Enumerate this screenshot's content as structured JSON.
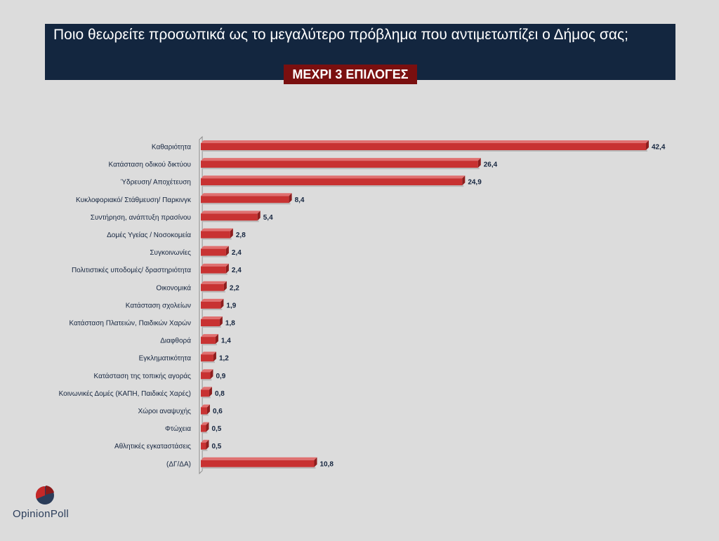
{
  "header": {
    "title": "Ποιο θεωρείτε προσωπικά ως το μεγαλύτερο πρόβλημα που αντιμετωπίζει ο Δήμος σας;",
    "subtitle": "ΜΕΧΡΙ 3 ΕΠΙΛΟΓΕΣ",
    "title_bg": "#13263f",
    "subtitle_bg": "#7a0f0f"
  },
  "logo": {
    "text_a": "Opinion",
    "text_b": "Poll",
    "icon": "pie-logo-icon"
  },
  "chart_data": {
    "type": "bar",
    "orientation": "horizontal",
    "bar_color": "#c83232",
    "categories": [
      "Καθαριότητα",
      "Κατάσταση οδικού δικτύου",
      "Ύδρευση/ Αποχέτευση",
      "Κυκλοφοριακό/ Στάθμευση/ Παρκινγκ",
      "Συντήρηση, ανάπτυξη πρασίνου",
      "Δομές Υγείας / Νοσοκομεία",
      "Συγκοινωνίες",
      "Πολιτιστικές υποδομές/ δραστηριότητα",
      "Οικονομικά",
      "Κατάσταση σχολείων",
      "Κατάσταση Πλατειών, Παιδικών Χαρών",
      "Διαφθορά",
      "Εγκληματικότητα",
      "Κατάσταση της τοπικής αγοράς",
      "Κοινωνικές Δομές (ΚΑΠΗ, Παιδικές Χαρές)",
      "Χώροι αναψυχής",
      "Φτώχεια",
      "Αθλητικές εγκαταστάσεις",
      "(ΔΓ/ΔΑ)"
    ],
    "values": [
      42.4,
      26.4,
      24.9,
      8.4,
      5.4,
      2.8,
      2.4,
      2.4,
      2.2,
      1.9,
      1.8,
      1.4,
      1.2,
      0.9,
      0.8,
      0.6,
      0.5,
      0.5,
      10.8
    ],
    "value_labels": [
      "42,4",
      "26,4",
      "24,9",
      "8,4",
      "5,4",
      "2,8",
      "2,4",
      "2,4",
      "2,2",
      "1,9",
      "1,8",
      "1,4",
      "1,2",
      "0,9",
      "0,8",
      "0,6",
      "0,5",
      "0,5",
      "10,8"
    ],
    "xlim": [
      0,
      42.4
    ],
    "grid": false,
    "legend": "none"
  }
}
